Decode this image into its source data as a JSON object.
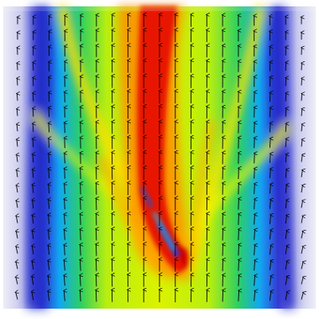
{
  "figure": {
    "kind": "flow field heatmap with velocity arrows",
    "colormap": [
      "#f4f4fb",
      "#c9cbef",
      "#3030d0",
      "#00a0ff",
      "#00e0b0",
      "#30d020",
      "#d8f000",
      "#ffee00",
      "#ff9000",
      "#e81000"
    ],
    "arrow_color": "#000000",
    "background": "#ffffff",
    "arrow_direction": "up"
  }
}
